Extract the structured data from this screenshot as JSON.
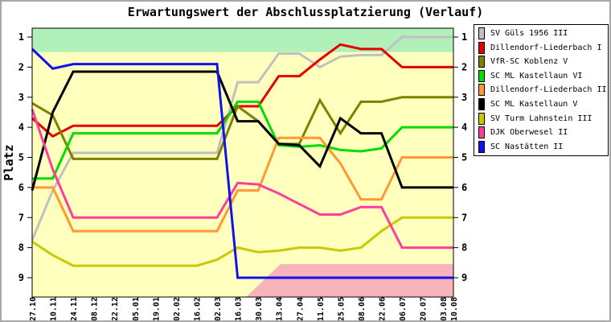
{
  "title": "Erwartungswert der Abschlussplatzierung (Verlauf)",
  "y_axis": {
    "label": "Platz",
    "ticks": [
      "1",
      "2",
      "3",
      "4",
      "5",
      "6",
      "7",
      "8",
      "9"
    ]
  },
  "colors": {
    "plot_background": "#ffffbe",
    "top_zone_green": "#b2f0ba",
    "bottom_zone_pink": "#f8b3bb",
    "axis": "#000000",
    "outer_border": "#a8a8a8"
  },
  "chart_data": {
    "type": "line",
    "title": "Erwartungswert der Abschlussplatzierung (Verlauf)",
    "xlabel": "",
    "ylabel": "Platz",
    "ylim": [
      1,
      9
    ],
    "y_axis_inverted": true,
    "grid": false,
    "legend_position": "right",
    "note_last_interval": "half-width (03.08 to 10.08 is one week, others two)",
    "x": [
      "27.10",
      "10.11",
      "24.11",
      "08.12",
      "22.12",
      "05.01",
      "19.01",
      "02.02",
      "16.02",
      "02.03",
      "16.03",
      "30.03",
      "13.04",
      "27.04",
      "11.05",
      "25.05",
      "08.06",
      "22.06",
      "06.07",
      "20.07",
      "03.08",
      "10.08"
    ],
    "bands": [
      {
        "name": "top-green-zone",
        "color": "#b2f0ba",
        "covers": "from plot top to place 1.5, full width"
      },
      {
        "name": "bottom-pink-zone",
        "color": "#f8b3bb",
        "covers": "from place 8.55 to plot bottom, from ~30.03 to right edge, sloped left edge"
      }
    ],
    "series": [
      {
        "name": "SV Güls 1956 III",
        "color": "#c0c0c0",
        "values": [
          7.75,
          6.1,
          4.85,
          4.85,
          4.85,
          4.85,
          4.85,
          4.85,
          4.85,
          4.85,
          2.5,
          2.5,
          1.55,
          1.55,
          2.0,
          1.65,
          1.6,
          1.6,
          1.0,
          1.0,
          1.0,
          1.0
        ]
      },
      {
        "name": "Dillendorf-Liederbach I",
        "color": "#e60000",
        "values": [
          3.7,
          4.3,
          3.95,
          3.95,
          3.95,
          3.95,
          3.95,
          3.95,
          3.95,
          3.95,
          3.3,
          3.3,
          2.3,
          2.3,
          1.75,
          1.25,
          1.4,
          1.4,
          2.0,
          2.0,
          2.0,
          2.0
        ]
      },
      {
        "name": "VfR-SC Koblenz V",
        "color": "#808000",
        "values": [
          3.2,
          3.6,
          5.05,
          5.05,
          5.05,
          5.05,
          5.05,
          5.05,
          5.05,
          5.05,
          3.3,
          3.8,
          4.55,
          4.55,
          3.1,
          4.2,
          3.15,
          3.15,
          3.0,
          3.0,
          3.0,
          3.0
        ]
      },
      {
        "name": "SC ML Kastellaun VI",
        "color": "#00dd00",
        "values": [
          5.7,
          5.7,
          4.2,
          4.2,
          4.2,
          4.2,
          4.2,
          4.2,
          4.2,
          4.2,
          3.15,
          3.15,
          4.6,
          4.65,
          4.6,
          4.75,
          4.8,
          4.7,
          4.0,
          4.0,
          4.0,
          4.0
        ]
      },
      {
        "name": "Dillendorf-Liederbach II",
        "color": "#ff9933",
        "values": [
          6.0,
          6.0,
          7.45,
          7.45,
          7.45,
          7.45,
          7.45,
          7.45,
          7.45,
          7.45,
          6.1,
          6.1,
          4.35,
          4.35,
          4.35,
          5.2,
          6.4,
          6.4,
          5.0,
          5.0,
          5.0,
          5.0
        ]
      },
      {
        "name": "SC ML Kastellaun V",
        "color": "#000000",
        "values": [
          6.1,
          3.5,
          2.15,
          2.15,
          2.15,
          2.15,
          2.15,
          2.15,
          2.15,
          2.15,
          3.8,
          3.8,
          4.55,
          4.6,
          5.3,
          3.7,
          4.2,
          4.2,
          6.0,
          6.0,
          6.0,
          6.0
        ]
      },
      {
        "name": "SV Turm Lahnstein III",
        "color": "#c9c900",
        "values": [
          7.8,
          8.25,
          8.6,
          8.6,
          8.6,
          8.6,
          8.6,
          8.6,
          8.6,
          8.4,
          8.0,
          8.15,
          8.1,
          8.0,
          8.0,
          8.1,
          8.0,
          7.45,
          7.0,
          7.0,
          7.0,
          7.0
        ]
      },
      {
        "name": "DJK Oberwesel II",
        "color": "#ff3d9b",
        "values": [
          3.4,
          5.4,
          7.0,
          7.0,
          7.0,
          7.0,
          7.0,
          7.0,
          7.0,
          7.0,
          5.85,
          5.9,
          6.2,
          6.55,
          6.9,
          6.9,
          6.65,
          6.65,
          8.0,
          8.0,
          8.0,
          8.0
        ]
      },
      {
        "name": "SC Nastätten II",
        "color": "#1111ee",
        "values": [
          1.4,
          2.05,
          1.9,
          1.9,
          1.9,
          1.9,
          1.9,
          1.9,
          1.9,
          1.9,
          9.0,
          9.0,
          9.0,
          9.0,
          9.0,
          9.0,
          9.0,
          9.0,
          9.0,
          9.0,
          9.0,
          9.0
        ]
      }
    ]
  }
}
